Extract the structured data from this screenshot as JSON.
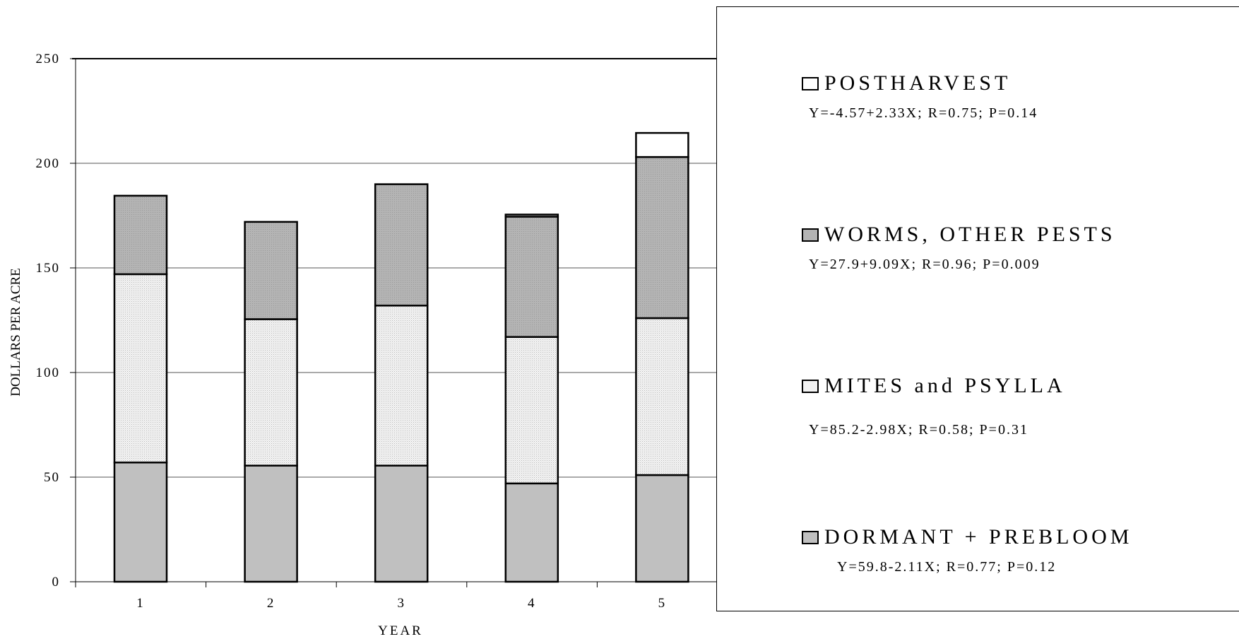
{
  "chart_data": {
    "type": "bar",
    "stacked": true,
    "categories": [
      "1",
      "2",
      "3",
      "4",
      "5"
    ],
    "series": [
      {
        "name": "DORMANT + PREBLOOM",
        "values": [
          57,
          55.5,
          55.5,
          47,
          51
        ],
        "color": "#c0c0c0"
      },
      {
        "name": "MITES and PSYLLA",
        "values": [
          90,
          70,
          76.5,
          70,
          75
        ],
        "color": "#f2f2f2"
      },
      {
        "name": "WORMS, OTHER PESTS",
        "values": [
          37.5,
          46.5,
          58,
          57.5,
          77
        ],
        "color": "#b4b4b4"
      },
      {
        "name": "POSTHARVEST",
        "values": [
          0,
          0,
          0,
          1,
          11.5
        ],
        "color": "#ffffff"
      }
    ],
    "xlabel": "YEAR",
    "ylabel": "DOLLARS PER ACRE",
    "yticks": [
      0,
      50,
      100,
      150,
      200,
      250
    ],
    "ylim": [
      0,
      250
    ],
    "grid": true,
    "legend_position": "right",
    "legend": [
      {
        "label": "POSTHARVEST",
        "equation": "Y=-4.57+2.33X;  R=0.75;  P=0.14",
        "color": "#ffffff"
      },
      {
        "label": "WORMS, OTHER PESTS",
        "equation": "Y=27.9+9.09X;  R=0.96;  P=0.009",
        "color": "#b4b4b4"
      },
      {
        "label": "MITES and PSYLLA",
        "equation": "Y=85.2-2.98X;  R=0.58;  P=0.31",
        "color": "#f2f2f2"
      },
      {
        "label": "DORMANT + PREBLOOM",
        "equation": "Y=59.8-2.11X; R=0.77; P=0.12",
        "color": "#c0c0c0"
      }
    ]
  }
}
